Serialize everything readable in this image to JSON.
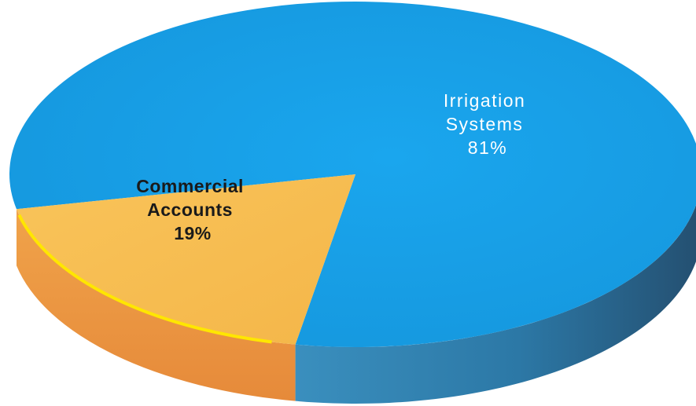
{
  "chart_data": {
    "type": "pie",
    "style": "3d",
    "title": "",
    "slices": [
      {
        "label_lines": [
          "Irrigation",
          "Systems"
        ],
        "value": 81,
        "value_label": "81%",
        "color": "#1aa0e8",
        "side_color": "#2a6e96"
      },
      {
        "label_lines": [
          "Commercial",
          "Accounts"
        ],
        "value": 19,
        "value_label": "19%",
        "color": "#f6bd4f",
        "side_color": "#e0923a",
        "edge_highlight": "#ffe600"
      }
    ],
    "legend": "none"
  }
}
